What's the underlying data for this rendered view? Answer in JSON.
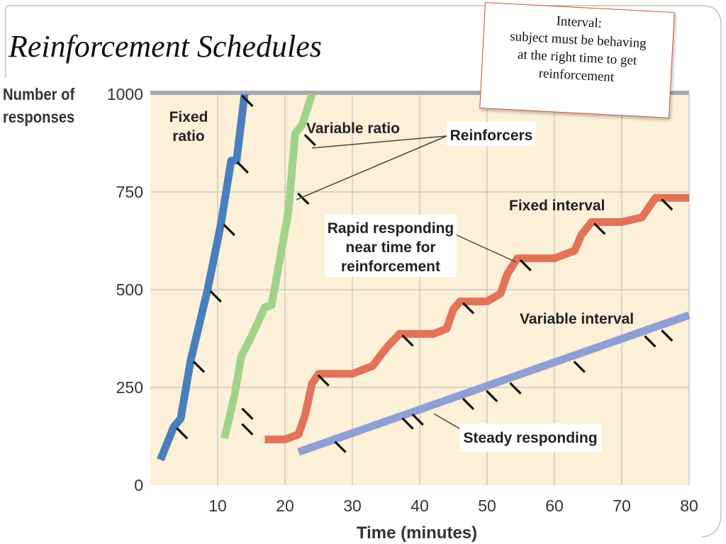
{
  "slide": {
    "title": "Reinforcement Schedules",
    "note": [
      "Interval:",
      "subject must be behaving",
      "at the right time to get",
      "reinforcement"
    ]
  },
  "colors": {
    "background": "#fdf0d8",
    "grid": "#c9c9c9",
    "fixed_ratio": "#4a7fbd",
    "variable_ratio": "#9fd38a",
    "fixed_interval": "#e2735a",
    "variable_interval": "#8f9fd4",
    "tick_mark": "#111111",
    "frame": "#b5b5b5"
  },
  "chart_data": {
    "type": "line",
    "title": "",
    "xlabel": "Time (minutes)",
    "ylabel_lines": [
      "Number of",
      "responses"
    ],
    "xlim": [
      0,
      80
    ],
    "ylim": [
      0,
      1000
    ],
    "x_ticks": [
      10,
      20,
      30,
      40,
      50,
      60,
      70,
      80
    ],
    "y_ticks": [
      0,
      250,
      500,
      750,
      1000
    ],
    "grid": true,
    "series": [
      {
        "name": "Fixed ratio",
        "name_lines": [
          "Fixed",
          "ratio"
        ],
        "color": "#4a7fbd",
        "points": [
          [
            1.5,
            65
          ],
          [
            3.5,
            150
          ],
          [
            4.5,
            170
          ],
          [
            6,
            320
          ],
          [
            8.5,
            500
          ],
          [
            10.5,
            670
          ],
          [
            12,
            830
          ],
          [
            12.8,
            830
          ],
          [
            14,
            1000
          ]
        ],
        "reinforcers": [
          [
            3.5,
            150
          ],
          [
            6,
            320
          ],
          [
            8.5,
            500
          ],
          [
            10.5,
            670
          ],
          [
            12.5,
            830
          ],
          [
            13.2,
            1000
          ]
        ]
      },
      {
        "name": "Variable ratio",
        "name_lines": [
          "Variable ratio"
        ],
        "color": "#9fd38a",
        "points": [
          [
            11,
            120
          ],
          [
            12.5,
            230
          ],
          [
            13.5,
            330
          ],
          [
            15,
            380
          ],
          [
            17,
            455
          ],
          [
            18,
            460
          ],
          [
            20.5,
            700
          ],
          [
            21.5,
            900
          ],
          [
            22.5,
            920
          ],
          [
            24,
            1000
          ]
        ],
        "reinforcers": [
          [
            13.2,
            160
          ],
          [
            13.2,
            200
          ],
          [
            22.5,
            900
          ],
          [
            21.5,
            750
          ]
        ]
      },
      {
        "name": "Fixed interval",
        "name_lines": [
          "Fixed interval"
        ],
        "color": "#e2735a",
        "points": [
          [
            17,
            117
          ],
          [
            20,
            117
          ],
          [
            22,
            130
          ],
          [
            23,
            180
          ],
          [
            24,
            260
          ],
          [
            25,
            285
          ],
          [
            30,
            285
          ],
          [
            33,
            305
          ],
          [
            35,
            350
          ],
          [
            37,
            387
          ],
          [
            42,
            387
          ],
          [
            44,
            400
          ],
          [
            45,
            450
          ],
          [
            46,
            470
          ],
          [
            50,
            470
          ],
          [
            52,
            490
          ],
          [
            53,
            540
          ],
          [
            54.5,
            580
          ],
          [
            60,
            580
          ],
          [
            63,
            600
          ],
          [
            64,
            640
          ],
          [
            65.5,
            673
          ],
          [
            70,
            673
          ],
          [
            73,
            685
          ],
          [
            75,
            735
          ],
          [
            80,
            735
          ]
        ],
        "reinforcers": [
          [
            24.5,
            285
          ],
          [
            37,
            387
          ],
          [
            46,
            470
          ],
          [
            54.5,
            580
          ],
          [
            65.5,
            673
          ],
          [
            75.5,
            735
          ]
        ]
      },
      {
        "name": "Variable interval",
        "name_lines": [
          "Variable interval"
        ],
        "color": "#8f9fd4",
        "points": [
          [
            22,
            85
          ],
          [
            80,
            435
          ]
        ],
        "reinforcers": [
          [
            27,
            115
          ],
          [
            37,
            175
          ],
          [
            38.5,
            185
          ],
          [
            46,
            225
          ],
          [
            49.5,
            245
          ],
          [
            53,
            265
          ],
          [
            62.5,
            320
          ],
          [
            73,
            385
          ],
          [
            75.5,
            400
          ]
        ]
      }
    ],
    "annotations": {
      "reinforcers_label": "Reinforcers",
      "rapid_label_lines": [
        "Rapid responding",
        "near time for",
        "reinforcement"
      ],
      "steady_label": "Steady responding"
    }
  }
}
